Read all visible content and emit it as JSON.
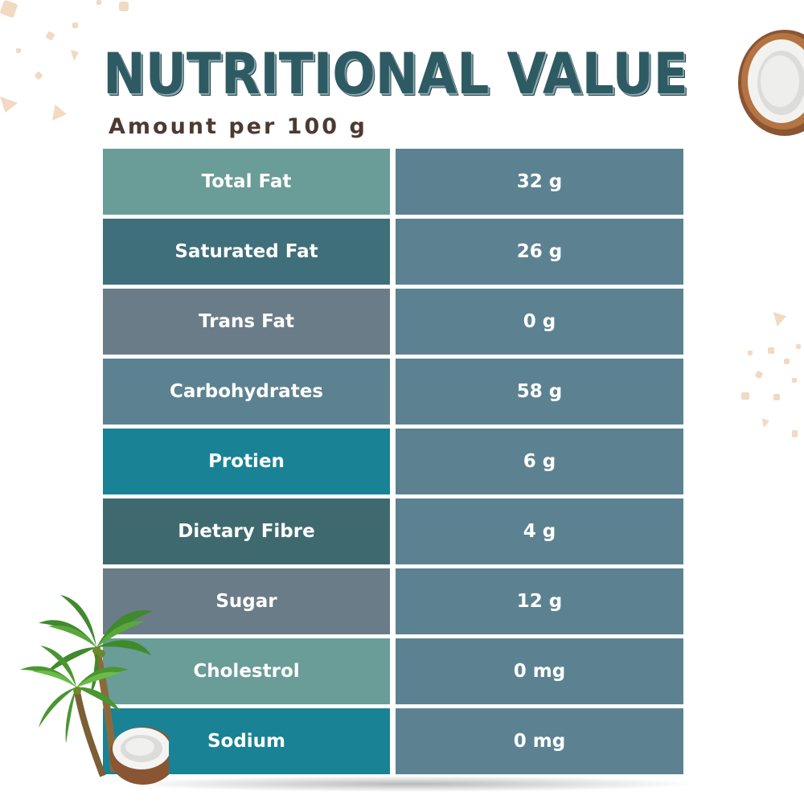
{
  "title": "NUTRITIONAL VALUE",
  "subtitle": "Amount per 100 g",
  "colors": {
    "title": "#2e5b63",
    "subtitle": "#4d3a30",
    "value_cell": "#5c8291",
    "label_cells": [
      "#6a9c98",
      "#3e6f7a",
      "#6a7c87",
      "#5c8291",
      "#198295",
      "#3e6a6f",
      "#6a7c87",
      "#6a9c98",
      "#198295"
    ]
  },
  "rows": [
    {
      "label": "Total Fat",
      "value": "32 g"
    },
    {
      "label": "Saturated Fat",
      "value": "26 g"
    },
    {
      "label": "Trans Fat",
      "value": "0 g"
    },
    {
      "label": "Carbohydrates",
      "value": "58 g"
    },
    {
      "label": "Protien",
      "value": "6 g"
    },
    {
      "label": "Dietary Fibre",
      "value": "4 g"
    },
    {
      "label": "Sugar",
      "value": "12 g"
    },
    {
      "label": "Cholestrol",
      "value": "0 mg"
    },
    {
      "label": "Sodium",
      "value": "0 mg"
    }
  ],
  "icons": [
    "coconut-half-icon",
    "palm-tree-icon",
    "coconut-flake-icon"
  ]
}
